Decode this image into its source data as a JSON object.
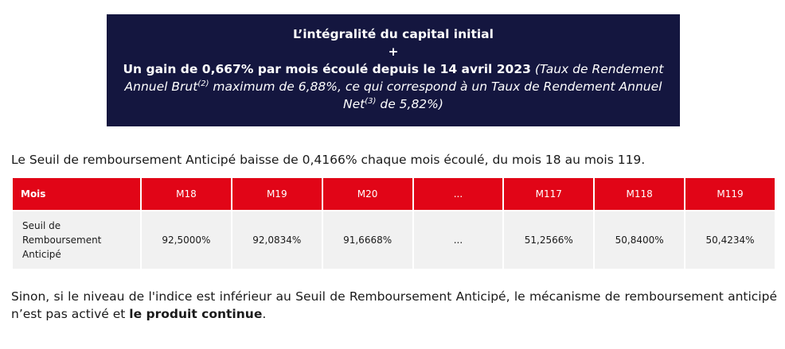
{
  "banner": {
    "line1": "L’intégralité du capital initial",
    "plus": "+",
    "gain_bold": "Un gain de 0,667% par mois écoulé depuis le 14 avril 2023",
    "gain_italic_a": " (Taux de Rendement Annuel Brut",
    "sup2": "(2)",
    "gain_italic_b": " maximum de 6,88%, ce qui correspond à un Taux de Rendement Annuel Net",
    "sup3": "(3)",
    "gain_italic_c": " de 5,82%)"
  },
  "intro": "Le Seuil de remboursement Anticipé baisse de 0,4166% chaque mois écoulé, du mois 18 au mois 119.",
  "table": {
    "header_label": "Mois",
    "months": [
      "M18",
      "M19",
      "M20",
      "...",
      "M117",
      "M118",
      "M119"
    ],
    "row_label_1": "Seuil de",
    "row_label_2": "Remboursement",
    "row_label_3": "Anticipé",
    "values": [
      "92,5000%",
      "92,0834%",
      "91,6668%",
      "...",
      "51,2566%",
      "50,8400%",
      "50,4234%"
    ]
  },
  "outro": {
    "text": "Sinon, si le niveau de l'indice est inférieur au Seuil de Remboursement Anticipé, le mécanisme de remboursement anticipé n’est pas activé et ",
    "bold": "le produit continue",
    "end": "."
  },
  "colors": {
    "banner_bg": "#14163f",
    "header_red": "#e10517",
    "cell_bg": "#f1f1f1"
  }
}
